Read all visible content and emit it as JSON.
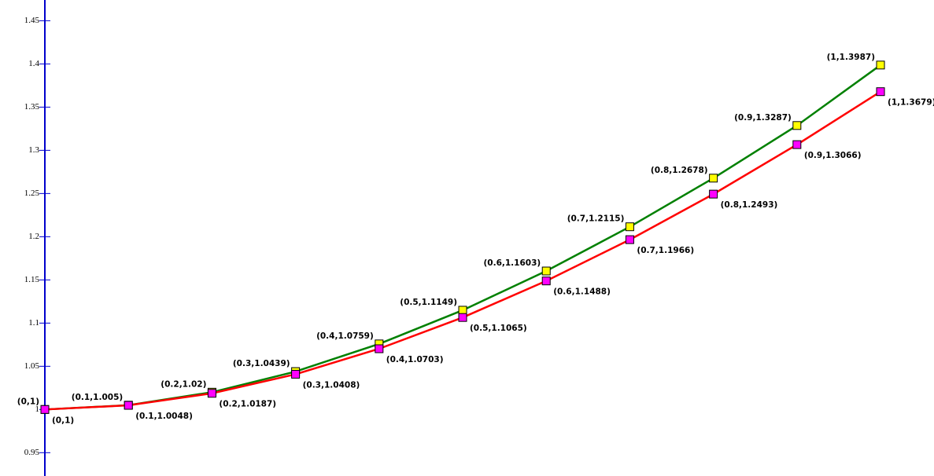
{
  "chart_data": {
    "type": "line",
    "x": [
      0,
      0.1,
      0.2,
      0.3,
      0.4,
      0.5,
      0.6,
      0.7,
      0.8,
      0.9,
      1
    ],
    "series": [
      {
        "color": "#008000",
        "marker_color": "#ffff00",
        "values": [
          1,
          1.005,
          1.02,
          1.0439,
          1.0759,
          1.1149,
          1.1603,
          1.2115,
          1.2678,
          1.3287,
          1.3987
        ],
        "value_labels": [
          "(0,1)",
          "(0.1,1.005)",
          "(0.2,1.02)",
          "(0.3,1.0439)",
          "(0.4,1.0759)",
          "(0.5,1.1149)",
          "(0.6,1.1603)",
          "(0.7,1.2115)",
          "(0.8,1.2678)",
          "(0.9,1.3287)",
          "(1,1.3987)"
        ]
      },
      {
        "color": "#ff0000",
        "marker_color": "#ff00ff",
        "values": [
          1,
          1.0048,
          1.0187,
          1.0408,
          1.0703,
          1.1065,
          1.1488,
          1.1966,
          1.2493,
          1.3066,
          1.3679
        ],
        "value_labels": [
          "(0,1)",
          "(0.1,1.0048)",
          "(0.2,1.0187)",
          "(0.3,1.0408)",
          "(0.4,1.0703)",
          "(0.5,1.1065)",
          "(0.6,1.1488)",
          "(0.7,1.1966)",
          "(0.8,1.2493)",
          "(0.9,1.3066)",
          "(1,1.3679)"
        ]
      }
    ],
    "xlim": [
      0,
      1.064
    ],
    "ylim": [
      0.923,
      1.474
    ],
    "yticks": [
      0.95,
      1,
      1.05,
      1.1,
      1.15,
      1.2,
      1.25,
      1.3,
      1.35,
      1.4,
      1.45
    ],
    "axis_color": "#0000cc"
  }
}
